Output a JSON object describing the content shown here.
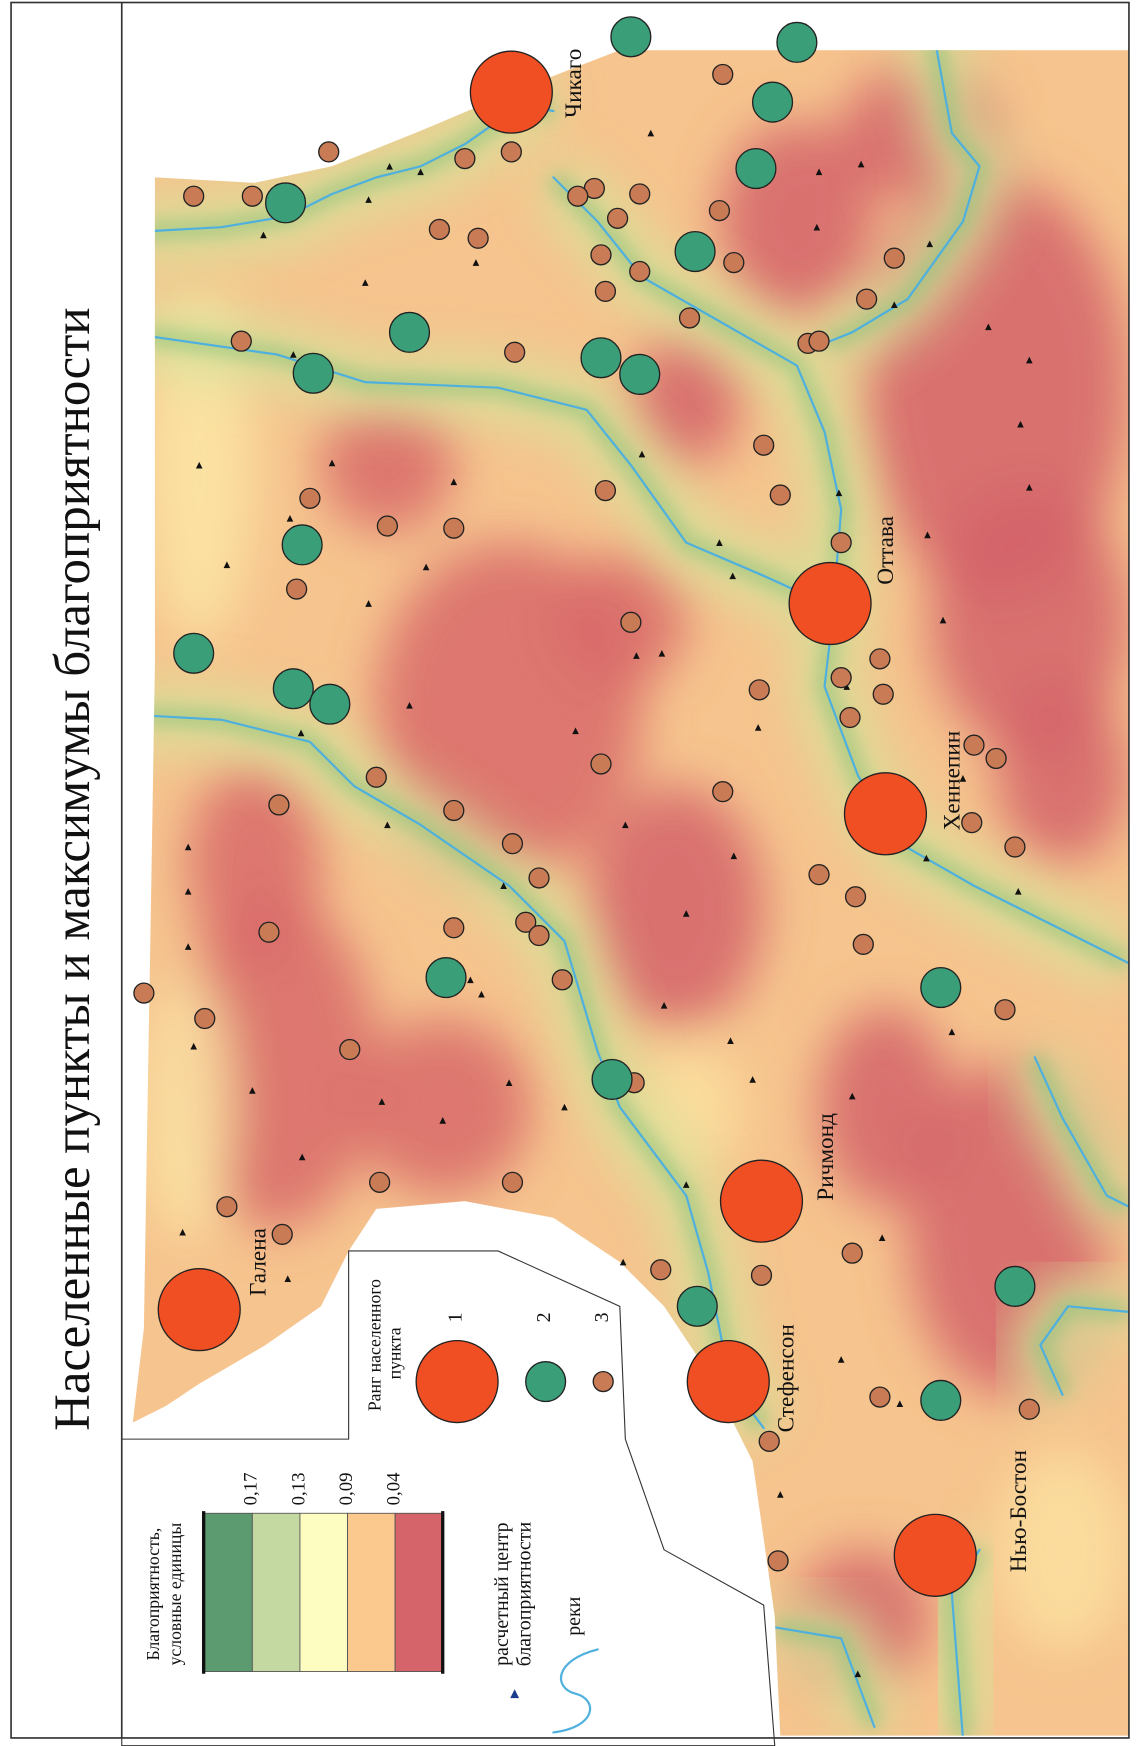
{
  "title": "Населенные пункты и максимумы благоприятности",
  "legend": {
    "suitability_title": [
      "Благоприятность,",
      "условные единицы"
    ],
    "breaks": [
      "0,17",
      "0,13",
      "0,09",
      "0,04"
    ],
    "rank_title": [
      "Ранг населенного",
      "пункта"
    ],
    "ranks": [
      1,
      2,
      3
    ],
    "center_label": [
      "расчетный центр",
      "благоприятности"
    ],
    "rivers_label": "реки"
  },
  "cities": [
    "Чикаго",
    "Оттава",
    "Хеннепин",
    "Ричмонд",
    "Стефенсон",
    "Нью-Бостон",
    "Галена"
  ]
}
